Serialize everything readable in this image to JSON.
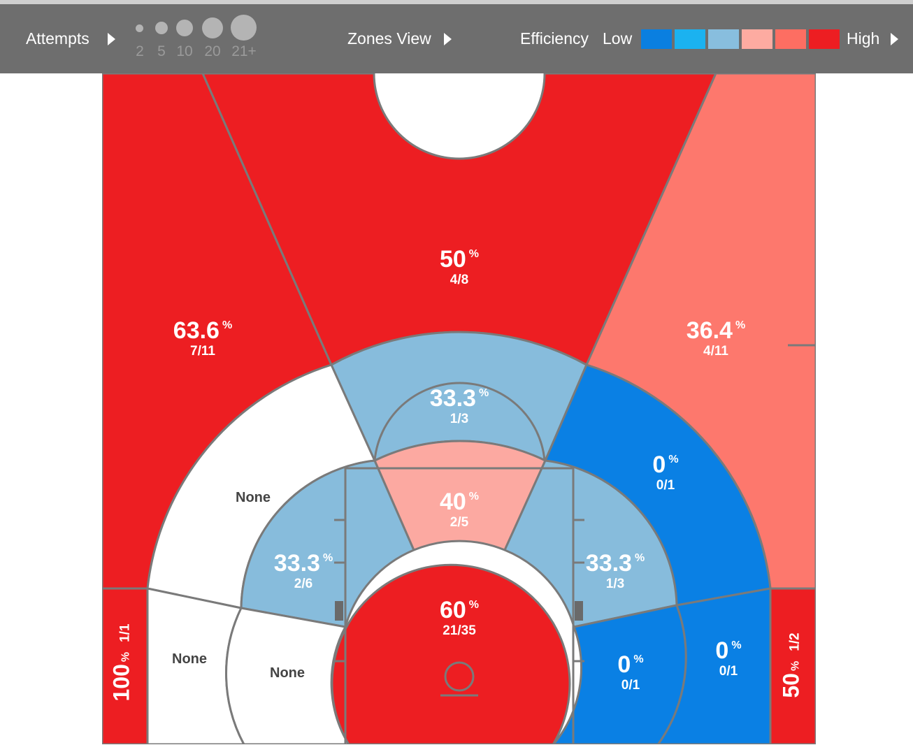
{
  "toolbar": {
    "attempts_label": "Attempts",
    "size_legend": [
      "2",
      "5",
      "10",
      "20",
      "21+"
    ],
    "zones_view_label": "Zones View",
    "efficiency_label": "Efficiency",
    "low_label": "Low",
    "high_label": "High",
    "efficiency_scale_colors": [
      "#0a7fe0",
      "#1bb2f0",
      "#88bede",
      "#fdaba1",
      "#fd6e62",
      "#ed1e22"
    ]
  },
  "colors": {
    "high": "#ed1e22",
    "mid_high": "#fd786d",
    "mid_low": "#fca9a1",
    "low_mid": "#87bcdc",
    "low": "#0a80e4",
    "none": "#ffffff",
    "lines": "#7a7a7a"
  },
  "zones": {
    "top_key": {
      "pct": "50",
      "frac": "4/8"
    },
    "left_wing_three": {
      "pct": "63.6",
      "frac": "7/11"
    },
    "right_wing_three": {
      "pct": "36.4",
      "frac": "4/11"
    },
    "top_of_key_mid": {
      "pct": "33.3",
      "frac": "1/3"
    },
    "left_wing_mid": {
      "label": "None"
    },
    "right_wing_mid": {
      "pct": "0",
      "frac": "0/1"
    },
    "paint_top": {
      "pct": "40",
      "frac": "2/5"
    },
    "left_short": {
      "pct": "33.3",
      "frac": "2/6"
    },
    "right_short": {
      "pct": "33.3",
      "frac": "1/3"
    },
    "restricted_area": {
      "pct": "60",
      "frac": "21/35"
    },
    "left_baseline_mid": {
      "label": "None"
    },
    "left_baseline_short": {
      "label": "None"
    },
    "right_baseline_short": {
      "pct": "0",
      "frac": "0/1"
    },
    "right_baseline_mid": {
      "pct": "0",
      "frac": "0/1"
    },
    "left_corner_three": {
      "pct": "100",
      "frac": "1/1"
    },
    "right_corner_three": {
      "pct": "50",
      "frac": "1/2"
    }
  },
  "percent_sign": "%"
}
